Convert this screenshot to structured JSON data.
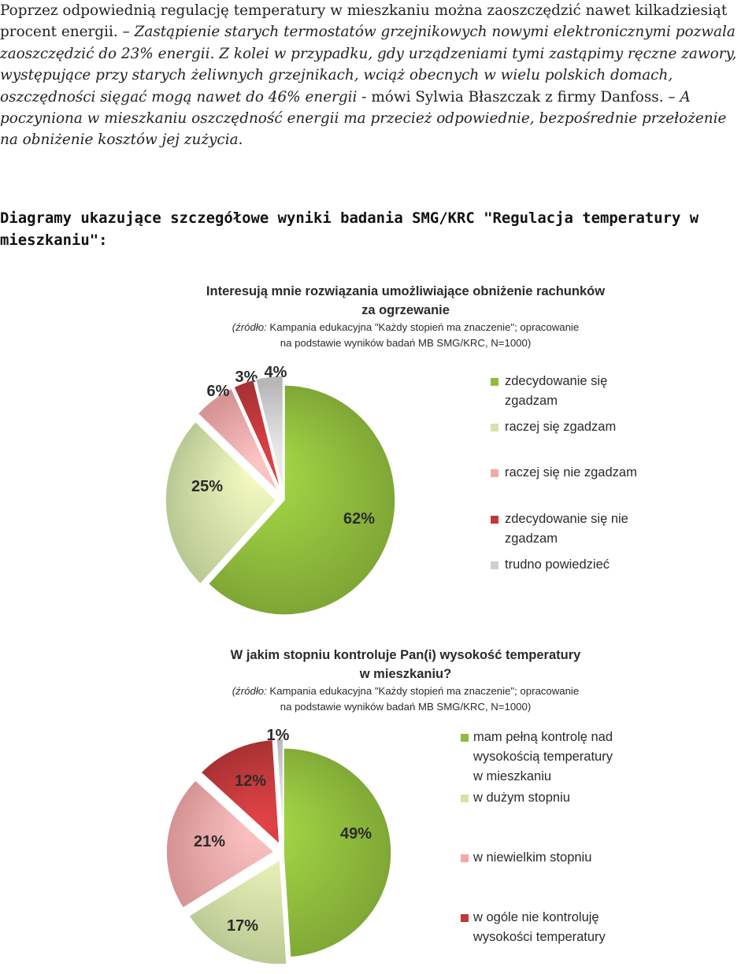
{
  "paragraph": {
    "line1": "Poprzez odpowiednią regulację temperatury w mieszkaniu można zaoszczędzić nawet kilkadziesiąt",
    "line2_regular": "procent energii. ",
    "line2_italic": "– Zastąpienie starych termostatów grzejnikowych nowymi elektronicznymi pozwala",
    "line3": "zaoszczędzić do 23% energii. Z kolei w przypadku, gdy urządzeniami tymi zastąpimy ręczne zawory,",
    "line4": "występujące przy starych żeliwnych grzejnikach, wciąż obecnych w wielu polskich domach,",
    "line5_italic": "oszczędności sięgać mogą nawet do 46% energii",
    "line5_regular": " - mówi Sylwia Błaszczak z firmy Danfoss. ",
    "line5_italic_end": "– A",
    "line6": "poczyniona w mieszkaniu oszczędność energii ma przecież odpowiednie, bezpośrednie przełożenie",
    "line7": "na obniżenie kosztów jej zużycia."
  },
  "heading": {
    "line1": "Diagramy ukazujące szczegółowe wyniki badania SMG/KRC \"Regulacja temperatury w",
    "line2": "mieszkaniu\":"
  },
  "colors": {
    "dark_green": "#8fbc3c",
    "light_green": "#d3e4a8",
    "pink": "#f3a8a8",
    "red": "#c0393b",
    "gray": "#d0d0d0"
  },
  "chart_data": [
    {
      "type": "pie",
      "title_line1": "Interesują mnie rozwiązania umożliwiające obniżenie rachunków",
      "title_line2": "za ogrzewanie",
      "source_label": "(źródło:",
      "source_line1_rest": " Kampania edukacyjna \"Każdy stopień ma znaczenie\"; opracowanie",
      "source_line2": "na podstawie wyników badań MB SMG/KRC, N=1000)",
      "slices": [
        {
          "label": "zdecydowanie się zgadzam",
          "label_line1": "zdecydowanie się",
          "label_line2": "zgadzam",
          "value": 62,
          "display": "62%",
          "color": "#8fbc3c"
        },
        {
          "label": "raczej się zgadzam",
          "label_line1": "raczej się zgadzam",
          "value": 25,
          "display": "25%",
          "color": "#d3e4a8"
        },
        {
          "label": "raczej się nie zgadzam",
          "label_line1": "raczej się nie zgadzam",
          "value": 6,
          "display": "6%",
          "color": "#f3a8a8"
        },
        {
          "label": "zdecydowanie się nie zgadzam",
          "label_line1": "zdecydowanie się nie",
          "label_line2": "zgadzam",
          "value": 3,
          "display": "3%",
          "color": "#c0393b"
        },
        {
          "label": "trudno powiedzieć",
          "label_line1": "trudno powiedzieć",
          "value": 4,
          "display": "4%",
          "color": "#d0d0d0"
        }
      ],
      "legend_position": "right"
    },
    {
      "type": "pie",
      "title_line1": "W jakim stopniu kontroluje Pan(i) wysokość temperatury",
      "title_line2": "w mieszkaniu?",
      "source_label": "(źródło:",
      "source_line1_rest": " Kampania edukacyjna \"Każdy stopień ma znaczenie\"; opracowanie",
      "source_line2": "na podstawie wyników badań MB SMG/KRC, N=1000)",
      "slices": [
        {
          "label": "mam pełną kontrolę nad wysokością temperatury w mieszkaniu",
          "label_line1": "mam pełną kontrolę nad",
          "label_line2": "wysokością temperatury",
          "label_line3": "w mieszkaniu",
          "value": 49,
          "display": "49%",
          "color": "#8fbc3c"
        },
        {
          "label": "w dużym stopniu",
          "label_line1": "w dużym stopniu",
          "value": 17,
          "display": "17%",
          "color": "#d3e4a8"
        },
        {
          "label": "w niewielkim stopniu",
          "label_line1": "w niewielkim stopniu",
          "value": 21,
          "display": "21%",
          "color": "#f3a8a8"
        },
        {
          "label": "w ogóle nie kontroluję wysokości temperatury",
          "label_line1": "w ogóle nie kontroluję",
          "label_line2": "wysokości temperatury",
          "value": 12,
          "display": "12%",
          "color": "#c0393b"
        },
        {
          "label": "",
          "value": 1,
          "display": "1%",
          "color": "#d0d0d0"
        }
      ],
      "legend_position": "right"
    }
  ]
}
